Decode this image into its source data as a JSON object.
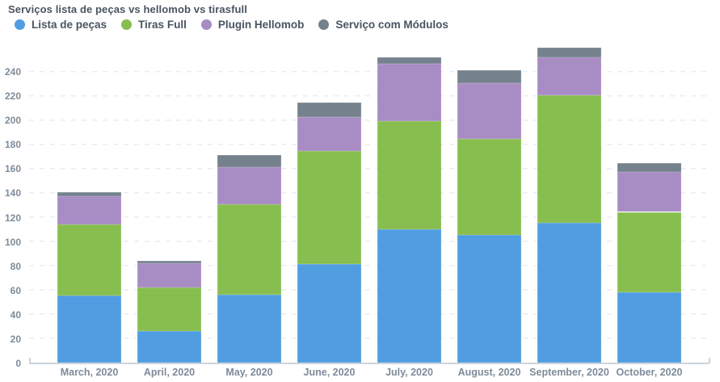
{
  "chart_data": {
    "type": "bar",
    "stacked": true,
    "title": "Serviços lista de peças vs hellomob vs tirasfull",
    "legend_position": "top",
    "grid": {
      "style": "dashed-horizontal",
      "color": "#e9ecf0",
      "axis_line_color": "#ccd3db"
    },
    "categories": [
      "March, 2020",
      "April, 2020",
      "May, 2020",
      "June, 2020",
      "July, 2020",
      "August, 2020",
      "September, 2020",
      "October, 2020"
    ],
    "series": [
      {
        "name": "Lista de peças",
        "color": "#509de2",
        "values": [
          55,
          26,
          56,
          81,
          110,
          105,
          115,
          58
        ]
      },
      {
        "name": "Tiras Full",
        "color": "#87be4f",
        "values": [
          59,
          36,
          74,
          93,
          89,
          79,
          105,
          66
        ]
      },
      {
        "name": "Plugin Hellomob",
        "color": "#a88cc4",
        "values": [
          23,
          20,
          31,
          28,
          47,
          46,
          31,
          33
        ]
      },
      {
        "name": "Serviço com Módulos",
        "color": "#75828e",
        "values": [
          3,
          2,
          10,
          12,
          5,
          11,
          8,
          7
        ]
      }
    ],
    "totals": [
      140,
      84,
      171,
      214,
      251,
      241,
      259,
      164
    ],
    "y_axis": {
      "min": 0,
      "max": 240,
      "step": 20,
      "ticks": [
        0,
        20,
        40,
        60,
        80,
        100,
        120,
        140,
        160,
        180,
        200,
        220,
        240
      ]
    },
    "x_label": "",
    "y_label": ""
  },
  "text_colors": {
    "title": "#4a5462",
    "legend": "#4a5462",
    "axis_labels": "#7e8b99"
  }
}
